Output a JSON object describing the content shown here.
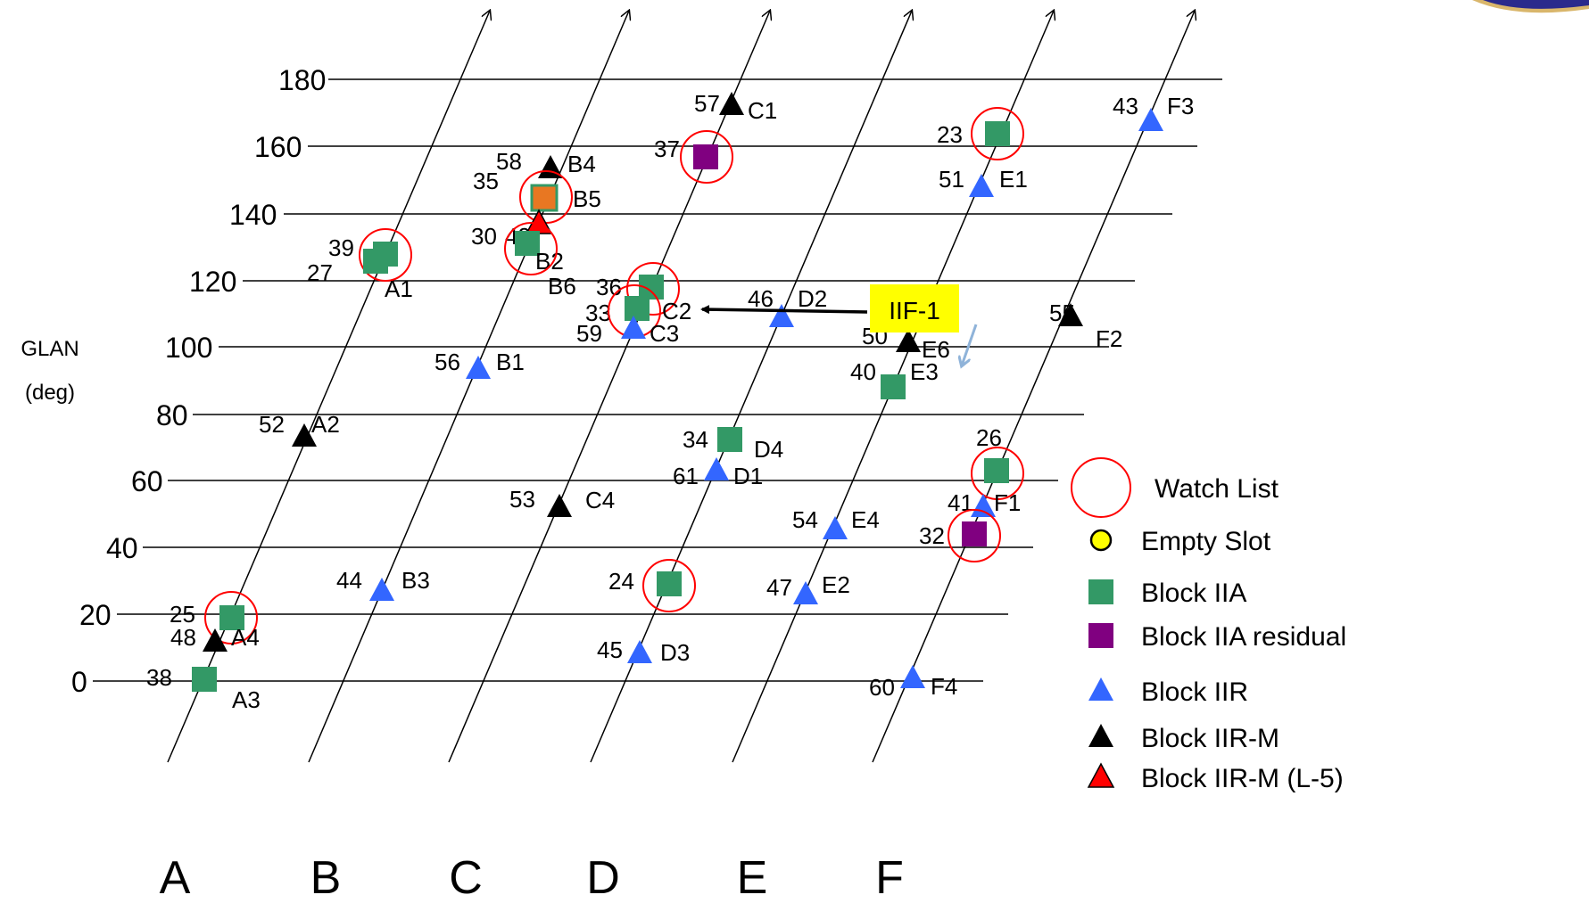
{
  "axis": {
    "label_line1": "GLAN",
    "label_line2": "(deg)",
    "ticks": [
      "180",
      "160",
      "140",
      "120",
      "100",
      "80",
      "60",
      "40",
      "20",
      "0"
    ]
  },
  "planes": [
    "A",
    "B",
    "C",
    "D",
    "E",
    "F"
  ],
  "colors": {
    "block_iia": "#339966",
    "block_iia_residual": "#800080",
    "block_iir": "#3366ff",
    "block_iir_m": "#000000",
    "block_iir_m_l5": "#ff0000",
    "orange_slot": "#e87722",
    "watch": "#ff0000",
    "empty": "#ffff00",
    "callout": "#ffff00",
    "callout_arrow2": "#8fb3d9"
  },
  "legend": [
    {
      "symbol": "watch",
      "label": "Watch List"
    },
    {
      "symbol": "empty",
      "label": "Empty Slot"
    },
    {
      "symbol": "block_iia",
      "label": "Block IIA"
    },
    {
      "symbol": "block_iia_residual",
      "label": "Block IIA residual"
    },
    {
      "symbol": "block_iir",
      "label": "Block IIR"
    },
    {
      "symbol": "block_iir_m",
      "label": "Block IIR-M"
    },
    {
      "symbol": "block_iir_m_l5",
      "label": "Block IIR-M (L-5)"
    }
  ],
  "callout": {
    "label": "IIF-1"
  },
  "satellites": [
    {
      "prn": "57",
      "slot": "C1",
      "type": "block_iir_m"
    },
    {
      "prn": "37",
      "slot": "",
      "type": "block_iia_residual",
      "watch": true
    },
    {
      "prn": "58",
      "slot": "B4",
      "type": "block_iir_m"
    },
    {
      "prn": "35",
      "slot": "B5",
      "type": "orange_slot",
      "watch": true
    },
    {
      "prn": "49",
      "slot": "",
      "type": "block_iir_m_l5"
    },
    {
      "prn": "30",
      "slot": "B2",
      "type": "block_iia",
      "watch": true
    },
    {
      "prn": "39",
      "slot": "",
      "type": "block_iia",
      "watch": true
    },
    {
      "prn": "27",
      "slot": "A1",
      "type": "block_iia"
    },
    {
      "prn": "36",
      "slot": "",
      "type": "block_iia",
      "watch": true
    },
    {
      "prn": "33",
      "slot": "C2",
      "type": "block_iia",
      "watch": true
    },
    {
      "prn": "",
      "slot": "B6",
      "type": "label_only"
    },
    {
      "prn": "59",
      "slot": "C3",
      "type": "block_iir"
    },
    {
      "prn": "46",
      "slot": "D2",
      "type": "block_iir"
    },
    {
      "prn": "56",
      "slot": "B1",
      "type": "block_iir"
    },
    {
      "prn": "52",
      "slot": "A2",
      "type": "block_iir_m"
    },
    {
      "prn": "34",
      "slot": "D4",
      "type": "block_iia"
    },
    {
      "prn": "61",
      "slot": "D1",
      "type": "block_iir"
    },
    {
      "prn": "53",
      "slot": "C4",
      "type": "block_iir_m"
    },
    {
      "prn": "44",
      "slot": "B3",
      "type": "block_iir"
    },
    {
      "prn": "24",
      "slot": "",
      "type": "block_iia",
      "watch": true
    },
    {
      "prn": "45",
      "slot": "D3",
      "type": "block_iir"
    },
    {
      "prn": "25",
      "slot": "",
      "type": "block_iia",
      "watch": true
    },
    {
      "prn": "48",
      "slot": "A4",
      "type": "block_iir_m"
    },
    {
      "prn": "38",
      "slot": "A3",
      "type": "block_iia"
    },
    {
      "prn": "23",
      "slot": "",
      "type": "block_iia",
      "watch": true
    },
    {
      "prn": "51",
      "slot": "E1",
      "type": "block_iir"
    },
    {
      "prn": "43",
      "slot": "F3",
      "type": "block_iir"
    },
    {
      "prn": "55",
      "slot": "F2",
      "type": "block_iir_m"
    },
    {
      "prn": "50",
      "slot": "E6",
      "type": "block_iir_m"
    },
    {
      "prn": "40",
      "slot": "E3",
      "type": "block_iia",
      "watch": true
    },
    {
      "prn": "26",
      "slot": "",
      "type": "block_iia",
      "watch": true
    },
    {
      "prn": "41",
      "slot": "F1",
      "type": "block_iir"
    },
    {
      "prn": "32",
      "slot": "",
      "type": "block_iia_residual",
      "watch": true
    },
    {
      "prn": "54",
      "slot": "E4",
      "type": "block_iir"
    },
    {
      "prn": "47",
      "slot": "E2",
      "type": "block_iir"
    },
    {
      "prn": "60",
      "slot": "F4",
      "type": "block_iir"
    }
  ]
}
